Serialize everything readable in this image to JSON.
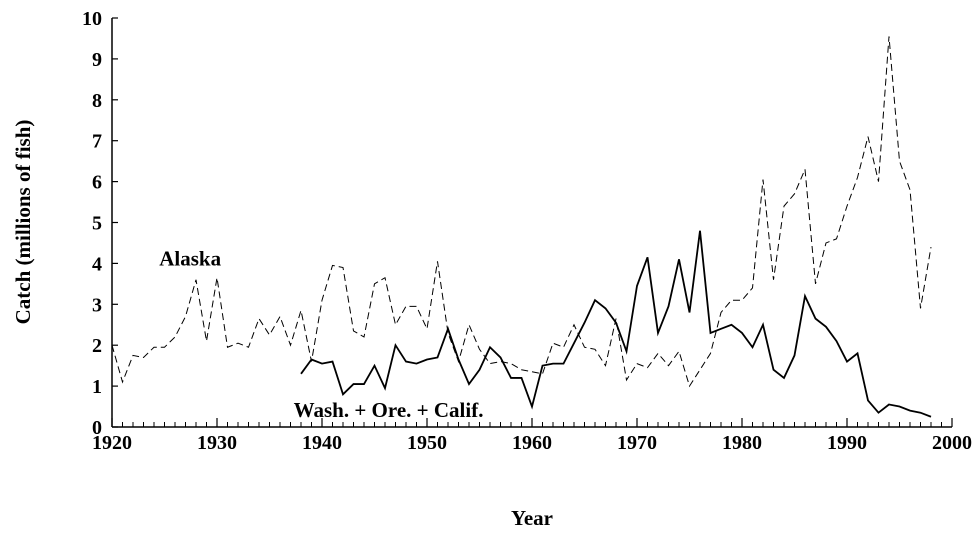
{
  "chart_data": {
    "type": "line",
    "xlabel": "Year",
    "ylabel": "Catch (millions of fish)",
    "x": [
      1920,
      1921,
      1922,
      1923,
      1924,
      1925,
      1926,
      1927,
      1928,
      1929,
      1930,
      1931,
      1932,
      1933,
      1934,
      1935,
      1936,
      1937,
      1938,
      1939,
      1940,
      1941,
      1942,
      1943,
      1944,
      1945,
      1946,
      1947,
      1948,
      1949,
      1950,
      1951,
      1952,
      1953,
      1954,
      1955,
      1956,
      1957,
      1958,
      1959,
      1960,
      1961,
      1962,
      1963,
      1964,
      1965,
      1966,
      1967,
      1968,
      1969,
      1970,
      1971,
      1972,
      1973,
      1974,
      1975,
      1976,
      1977,
      1978,
      1979,
      1980,
      1981,
      1982,
      1983,
      1984,
      1985,
      1986,
      1987,
      1988,
      1989,
      1990,
      1991,
      1992,
      1993,
      1994,
      1995,
      1996,
      1997,
      1998
    ],
    "series": [
      {
        "name": "Alaska",
        "color": "#000000",
        "dash": true,
        "values": [
          2.0,
          1.1,
          1.75,
          1.7,
          1.95,
          1.95,
          2.2,
          2.7,
          3.6,
          2.1,
          3.65,
          1.95,
          2.05,
          1.95,
          2.65,
          2.25,
          2.7,
          2.0,
          2.85,
          1.6,
          3.1,
          3.95,
          3.9,
          2.35,
          2.2,
          3.5,
          3.65,
          2.5,
          2.95,
          2.95,
          2.4,
          4.05,
          2.3,
          1.6,
          2.5,
          1.9,
          1.55,
          1.6,
          1.55,
          1.4,
          1.35,
          1.3,
          2.05,
          1.95,
          2.5,
          1.95,
          1.9,
          1.5,
          2.65,
          1.15,
          1.55,
          1.45,
          1.8,
          1.5,
          1.85,
          1.0,
          1.4,
          1.8,
          2.8,
          3.1,
          3.1,
          3.4,
          6.05,
          3.6,
          5.4,
          5.7,
          6.3,
          3.5,
          4.5,
          4.6,
          5.4,
          6.1,
          7.1,
          6.0,
          9.55,
          6.5,
          5.8,
          2.9,
          4.4
        ]
      },
      {
        "name": "Wash. + Ore. + Calif.",
        "color": "#000000",
        "dash": false,
        "values": [
          null,
          null,
          null,
          null,
          null,
          null,
          null,
          null,
          null,
          null,
          null,
          null,
          null,
          null,
          null,
          null,
          null,
          null,
          1.3,
          1.65,
          1.55,
          1.6,
          0.8,
          1.05,
          1.05,
          1.5,
          0.95,
          2.0,
          1.6,
          1.55,
          1.65,
          1.7,
          2.4,
          1.65,
          1.05,
          1.4,
          1.95,
          1.7,
          1.2,
          1.2,
          0.5,
          1.5,
          1.55,
          1.55,
          2.05,
          2.55,
          3.1,
          2.9,
          2.55,
          1.85,
          3.45,
          4.15,
          2.3,
          2.95,
          4.1,
          2.8,
          4.8,
          2.3,
          2.4,
          2.5,
          2.3,
          1.95,
          2.5,
          1.4,
          1.2,
          1.75,
          3.2,
          2.65,
          2.45,
          2.1,
          1.6,
          1.8,
          0.65,
          0.35,
          0.55,
          0.5,
          0.4,
          0.35,
          0.25
        ]
      }
    ],
    "xlim": [
      1920,
      2000
    ],
    "xticks": [
      1920,
      1930,
      1940,
      1950,
      1960,
      1970,
      1980,
      1990,
      2000
    ],
    "ylim": [
      0,
      10
    ],
    "yticks": [
      0,
      1,
      2,
      3,
      4,
      5,
      6,
      7,
      8,
      9,
      10
    ],
    "grid": false
  }
}
